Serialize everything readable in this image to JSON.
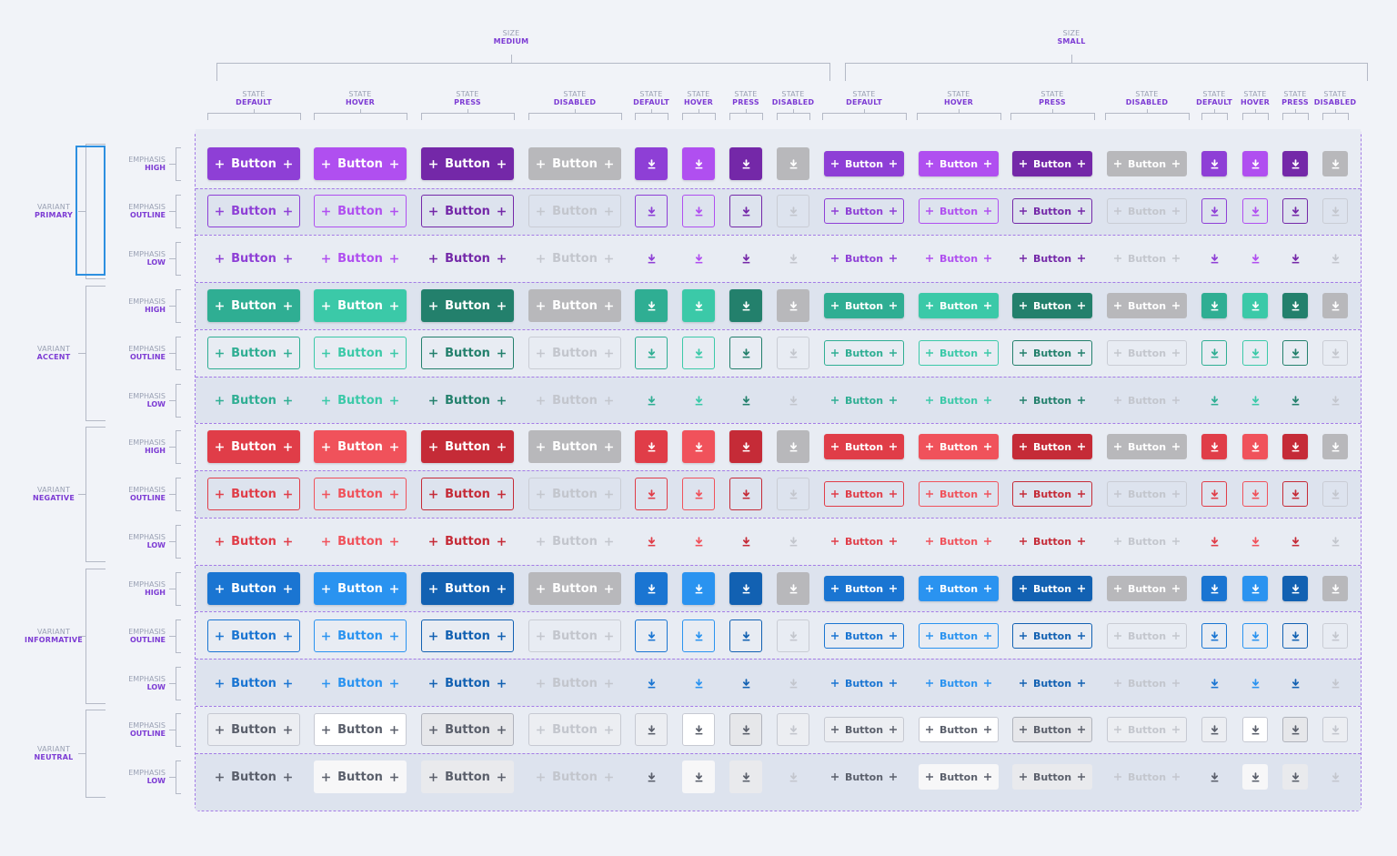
{
  "colors": {
    "primary": {
      "def": "#8e3fd6",
      "hov": "#b04ff0",
      "prs": "#7428a8"
    },
    "accent": {
      "def": "#2fae93",
      "hov": "#3bc9a8",
      "prs": "#23806c"
    },
    "negative": {
      "def": "#e03d48",
      "hov": "#f0525b",
      "prs": "#c52b37"
    },
    "informative": {
      "def": "#1a75d2",
      "hov": "#2a93f0",
      "prs": "#1261b2"
    },
    "neutral": {
      "def": "#5a5f6b",
      "hov": "#5a5f6b",
      "prs": "#5a5f6b"
    },
    "disabled": "#b8b8bb",
    "label_key": "#9aa1b4",
    "label_value": "#7d3cd4"
  },
  "icons": {
    "plus": "plus-icon",
    "download": "download-icon"
  },
  "button_label": "Button",
  "size_groups": [
    {
      "key": "SIZE",
      "value": "MEDIUM"
    },
    {
      "key": "SIZE",
      "value": "SMALL"
    }
  ],
  "state_columns": [
    {
      "key": "STATE",
      "value": "DEFAULT"
    },
    {
      "key": "STATE",
      "value": "HOVER"
    },
    {
      "key": "STATE",
      "value": "PRESS"
    },
    {
      "key": "STATE",
      "value": "DISABLED"
    },
    {
      "key": "STATE",
      "value": "DEFAULT"
    },
    {
      "key": "STATE",
      "value": "HOVER"
    },
    {
      "key": "STATE",
      "value": "PRESS"
    },
    {
      "key": "STATE",
      "value": "DISABLED"
    },
    {
      "key": "STATE",
      "value": "DEFAULT"
    },
    {
      "key": "STATE",
      "value": "HOVER"
    },
    {
      "key": "STATE",
      "value": "PRESS"
    },
    {
      "key": "STATE",
      "value": "DISABLED"
    },
    {
      "key": "STATE",
      "value": "DEFAULT"
    },
    {
      "key": "STATE",
      "value": "HOVER"
    },
    {
      "key": "STATE",
      "value": "PRESS"
    },
    {
      "key": "STATE",
      "value": "DISABLED"
    }
  ],
  "variants": [
    {
      "key": "VARIANT",
      "value": "PRIMARY",
      "id": "primary",
      "emphases": [
        "HIGH",
        "OUTLINE",
        "LOW"
      ]
    },
    {
      "key": "VARIANT",
      "value": "ACCENT",
      "id": "accent",
      "emphases": [
        "HIGH",
        "OUTLINE",
        "LOW"
      ]
    },
    {
      "key": "VARIANT",
      "value": "NEGATIVE",
      "id": "negative",
      "emphases": [
        "HIGH",
        "OUTLINE",
        "LOW"
      ]
    },
    {
      "key": "VARIANT",
      "value": "INFORMATIVE",
      "id": "informative",
      "emphases": [
        "HIGH",
        "OUTLINE",
        "LOW"
      ]
    },
    {
      "key": "VARIANT",
      "value": "NEUTRAL",
      "id": "neutral",
      "emphases": [
        "OUTLINE",
        "LOW"
      ]
    }
  ],
  "emphasis_key": "EMPHASIS"
}
